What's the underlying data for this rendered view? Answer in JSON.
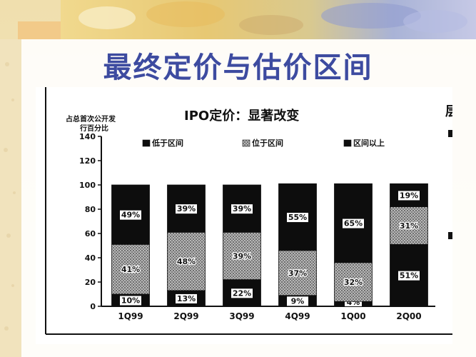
{
  "slide": {
    "title": "最终定价与估价区间"
  },
  "chart_data": {
    "type": "bar",
    "stacked": true,
    "title": "IPO定价：显著改变",
    "ylabel": "占总首次公开发行百分比",
    "ylabel_lines": [
      "占总首次公开发",
      "行百分比"
    ],
    "ylim": [
      0,
      140
    ],
    "yticks": [
      0,
      20,
      40,
      60,
      80,
      100,
      120,
      140
    ],
    "categories": [
      "1Q99",
      "2Q99",
      "3Q99",
      "4Q99",
      "1Q00",
      "2Q00"
    ],
    "series": [
      {
        "name": "低于区间",
        "values": [
          10,
          13,
          22,
          9,
          4,
          51
        ],
        "labels": [
          "10%",
          "13%",
          "22%",
          "9%",
          "4%",
          "51%"
        ],
        "color": "#0d0d0d"
      },
      {
        "name": "位于区间",
        "values": [
          41,
          48,
          39,
          37,
          32,
          31
        ],
        "labels": [
          "41%",
          "48%",
          "39%",
          "37%",
          "32%",
          "31%"
        ],
        "color": "#9a9a9a"
      },
      {
        "name": "区间以上",
        "values": [
          49,
          39,
          39,
          55,
          65,
          19
        ],
        "labels": [
          "49%",
          "39%",
          "39%",
          "55%",
          "65%",
          "19%"
        ],
        "color": "#0d0d0d"
      }
    ],
    "legend_position": "top",
    "grid": false,
    "right_edge_fragment": "层"
  }
}
